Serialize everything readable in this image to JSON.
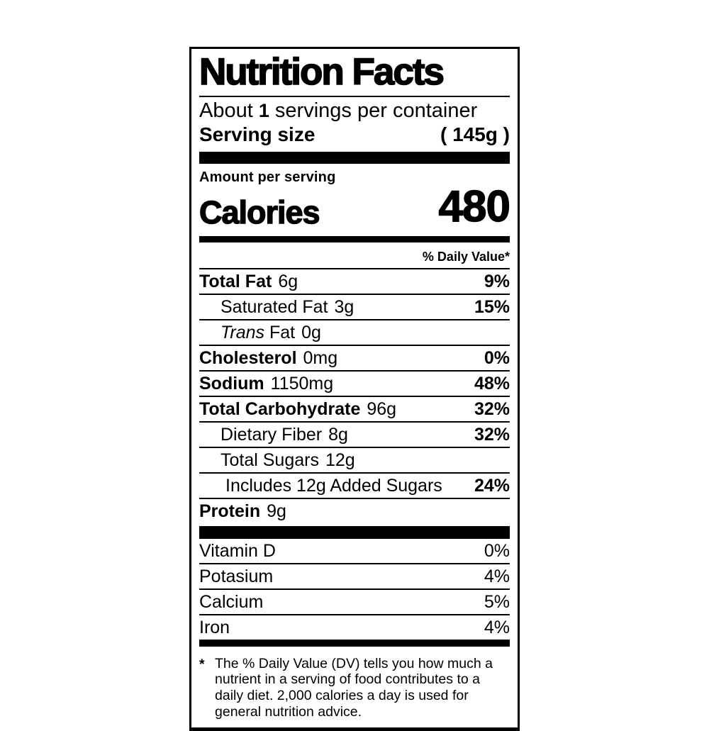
{
  "colors": {
    "ink": "#000000",
    "background": "#ffffff"
  },
  "label": {
    "title": "Nutrition Facts",
    "servings_line": {
      "prefix": "About ",
      "count": "1",
      "suffix": " servings per container"
    },
    "serving_size": {
      "label": "Serving size",
      "value": "( 145g )"
    },
    "amount_per_serving": "Amount per serving",
    "calories": {
      "label": "Calories",
      "value": "480"
    },
    "daily_value_header": "% Daily Value*",
    "nutrients": [
      {
        "name": "Total Fat",
        "amount": "6g",
        "dv": "9%"
      },
      {
        "name": "Saturated Fat",
        "amount": "3g",
        "dv": "15%"
      },
      {
        "name_italic": "Trans ",
        "name": "Fat",
        "amount": "0g",
        "dv": ""
      },
      {
        "name": "Cholesterol",
        "amount": "0mg",
        "dv": "0%"
      },
      {
        "name": "Sodium",
        "amount": "1150mg",
        "dv": "48%"
      },
      {
        "name": "Total Carbohydrate",
        "amount": "96g",
        "dv": "32%"
      },
      {
        "name": "Dietary Fiber",
        "amount": "8g",
        "dv": "32%"
      },
      {
        "name": "Total Sugars",
        "amount": "12g",
        "dv": ""
      },
      {
        "name": "Includes 12g Added Sugars",
        "amount": "",
        "dv": "24%"
      },
      {
        "name": "Protein",
        "amount": "9g",
        "dv": ""
      }
    ],
    "micronutrients": [
      {
        "name": "Vitamin D",
        "dv": "0%"
      },
      {
        "name": "Potasium",
        "dv": "4%"
      },
      {
        "name": "Calcium",
        "dv": "5%"
      },
      {
        "name": "Iron",
        "dv": "4%"
      }
    ],
    "footnote_marker": "*",
    "footnote": "The % Daily Value (DV) tells you how much a nutrient in a serving of food contributes to a daily diet. 2,000 calories a day is used for general nutrition advice."
  }
}
